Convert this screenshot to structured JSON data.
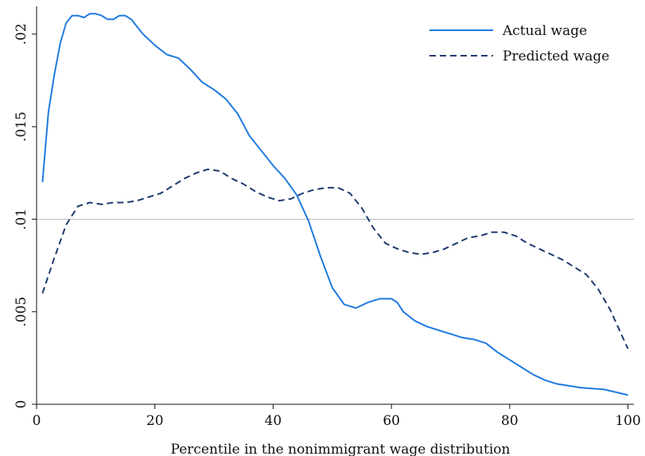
{
  "chart_data": {
    "type": "line",
    "xlabel": "Percentile in the nonimmigrant wage distribution",
    "ylabel": "",
    "xlim": [
      0,
      101
    ],
    "ylim": [
      0,
      0.0215
    ],
    "xticks": [
      0,
      20,
      40,
      60,
      80,
      100
    ],
    "xtick_labels": [
      "0",
      "20",
      "40",
      "60",
      "80",
      "100"
    ],
    "yticks": [
      0,
      0.005,
      0.01,
      0.015,
      0.02
    ],
    "ytick_labels": [
      "0",
      ".005",
      ".01",
      ".015",
      ".02"
    ],
    "reference_line": {
      "y": 0.01,
      "color": "#bbbbbb"
    },
    "legend_position": "top-right",
    "series": [
      {
        "name": "Actual wage",
        "style": "solid",
        "color": "#1f7ae0",
        "x": [
          1,
          2,
          3,
          4,
          5,
          6,
          7,
          8,
          9,
          10,
          11,
          12,
          13,
          14,
          15,
          16,
          17,
          18,
          19,
          20,
          22,
          24,
          26,
          28,
          30,
          32,
          34,
          36,
          38,
          40,
          42,
          44,
          46,
          48,
          50,
          52,
          54,
          56,
          58,
          60,
          61,
          62,
          64,
          66,
          68,
          70,
          72,
          74,
          76,
          78,
          80,
          82,
          84,
          86,
          88,
          90,
          92,
          94,
          96,
          98,
          100
        ],
        "values": [
          0.012,
          0.0158,
          0.0178,
          0.0195,
          0.0206,
          0.021,
          0.021,
          0.0209,
          0.0211,
          0.0211,
          0.021,
          0.0208,
          0.0208,
          0.021,
          0.021,
          0.0208,
          0.0204,
          0.02,
          0.0197,
          0.0194,
          0.0189,
          0.0187,
          0.0181,
          0.0174,
          0.017,
          0.0165,
          0.0157,
          0.0145,
          0.0137,
          0.0129,
          0.0122,
          0.0113,
          0.0099,
          0.008,
          0.0063,
          0.0054,
          0.0052,
          0.0055,
          0.0057,
          0.0057,
          0.0055,
          0.005,
          0.0045,
          0.0042,
          0.004,
          0.0038,
          0.0036,
          0.0035,
          0.0033,
          0.0028,
          0.0024,
          0.002,
          0.0016,
          0.0013,
          0.0011,
          0.001,
          0.0009,
          0.00085,
          0.0008,
          0.00065,
          0.0005
        ]
      },
      {
        "name": "Predicted wage",
        "style": "dashed",
        "color": "#1e3a6e",
        "x": [
          1,
          3,
          5,
          7,
          9,
          11,
          13,
          15,
          17,
          19,
          21,
          23,
          25,
          27,
          29,
          31,
          33,
          35,
          37,
          39,
          41,
          43,
          45,
          47,
          49,
          51,
          53,
          55,
          57,
          59,
          61,
          63,
          65,
          67,
          69,
          71,
          73,
          75,
          77,
          79,
          81,
          83,
          85,
          87,
          89,
          91,
          93,
          95,
          97,
          99,
          100
        ],
        "values": [
          0.006,
          0.0079,
          0.0097,
          0.0107,
          0.0109,
          0.0108,
          0.0109,
          0.0109,
          0.011,
          0.0112,
          0.0114,
          0.0118,
          0.0122,
          0.0125,
          0.0127,
          0.0126,
          0.0122,
          0.0119,
          0.0115,
          0.0112,
          0.011,
          0.0111,
          0.0114,
          0.0116,
          0.0117,
          0.0117,
          0.0114,
          0.0106,
          0.0095,
          0.0087,
          0.0084,
          0.0082,
          0.0081,
          0.0082,
          0.0084,
          0.0087,
          0.009,
          0.0091,
          0.0093,
          0.0093,
          0.0091,
          0.0087,
          0.0084,
          0.0081,
          0.0078,
          0.0074,
          0.007,
          0.0062,
          0.0051,
          0.0037,
          0.003
        ]
      }
    ]
  }
}
